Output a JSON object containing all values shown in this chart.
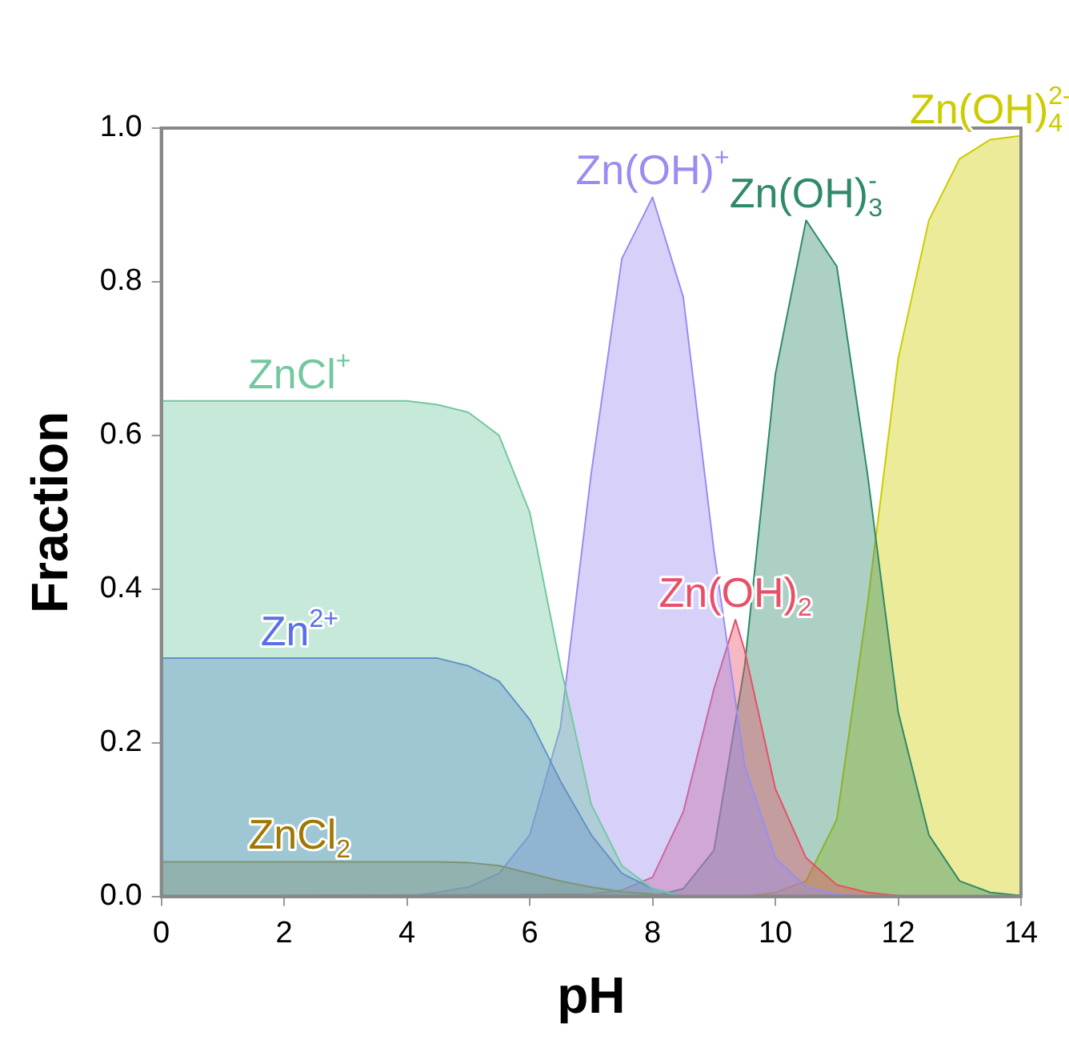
{
  "chart_data": {
    "type": "area",
    "xlabel": "pH",
    "ylabel": "Fraction",
    "xlim": [
      0,
      14
    ],
    "xticks": [
      0,
      2,
      4,
      6,
      8,
      10,
      12,
      14
    ],
    "ylim": [
      0,
      1
    ],
    "yticks": [
      {
        "value": 0,
        "label": "0.0"
      },
      {
        "value": 0.2,
        "label": "0.2"
      },
      {
        "value": 0.4,
        "label": "0.4"
      },
      {
        "value": 0.6,
        "label": "0.6"
      },
      {
        "value": 0.8,
        "label": "0.8"
      },
      {
        "value": 1,
        "label": "1.0"
      }
    ],
    "grid": false,
    "legend": false,
    "marker": "none",
    "x": [
      0,
      0.5,
      1,
      1.5,
      2,
      2.5,
      3,
      3.5,
      4,
      4.5,
      5,
      5.5,
      6,
      6.5,
      7,
      7.5,
      8,
      8.5,
      9,
      9.5,
      10,
      10.5,
      11,
      11.5,
      12,
      12.5,
      13,
      13.5,
      14
    ],
    "series": [
      {
        "name": "ZnCl$^{+}$",
        "color": "#74c8a0",
        "values": [
          0.645,
          0.645,
          0.645,
          0.645,
          0.645,
          0.645,
          0.645,
          0.645,
          0.645,
          0.64,
          0.63,
          0.6,
          0.5,
          0.3,
          0.12,
          0.04,
          0.01,
          0,
          0,
          0,
          0,
          0,
          0,
          0,
          0,
          0,
          0,
          0,
          0
        ]
      },
      {
        "name": "Zn$^{2+}$",
        "color": "#5a6ee6",
        "values": [
          0.31,
          0.31,
          0.31,
          0.31,
          0.31,
          0.31,
          0.31,
          0.31,
          0.31,
          0.31,
          0.3,
          0.28,
          0.23,
          0.15,
          0.08,
          0.03,
          0.01,
          0,
          0,
          0,
          0,
          0,
          0,
          0,
          0,
          0,
          0,
          0,
          0
        ]
      },
      {
        "name": "ZnCl$_{2}$",
        "color": "#a07800",
        "values": [
          0.045,
          0.045,
          0.045,
          0.045,
          0.045,
          0.045,
          0.045,
          0.045,
          0.045,
          0.045,
          0.044,
          0.04,
          0.03,
          0.02,
          0.012,
          0.006,
          0.003,
          0,
          0,
          0,
          0,
          0,
          0,
          0,
          0,
          0,
          0,
          0,
          0
        ]
      },
      {
        "name": "Zn(OH)$^{+}$",
        "color": "#9a8cf2",
        "values": [
          0,
          0,
          0,
          0,
          0,
          0,
          0,
          0,
          0,
          0.005,
          0.012,
          0.03,
          0.08,
          0.22,
          0.55,
          0.83,
          0.91,
          0.78,
          0.45,
          0.17,
          0.05,
          0.012,
          0.003,
          0,
          0,
          0,
          0,
          0,
          0
        ]
      },
      {
        "name": "Zn(OH)$_{2}$",
        "color": "#e8506a",
        "x": [
          0,
          7,
          7.5,
          8,
          8.5,
          9,
          9.35,
          9.5,
          10,
          10.5,
          11,
          11.5,
          12,
          14
        ],
        "values": [
          0,
          0.003,
          0.008,
          0.025,
          0.11,
          0.27,
          0.36,
          0.32,
          0.14,
          0.05,
          0.015,
          0.005,
          0.001,
          0
        ]
      },
      {
        "name": "Zn(OH)$_{3}$$^{-}$",
        "color": "#2f8a68",
        "values": [
          0,
          0,
          0,
          0,
          0,
          0,
          0,
          0,
          0,
          0,
          0,
          0,
          0,
          0,
          0,
          0,
          0,
          0.01,
          0.06,
          0.3,
          0.68,
          0.88,
          0.82,
          0.55,
          0.24,
          0.08,
          0.02,
          0.005,
          0.001
        ]
      },
      {
        "name": "Zn(OH)$_{4}$$^{2-}$",
        "color": "#cccc00",
        "values": [
          0,
          0,
          0,
          0,
          0,
          0,
          0,
          0,
          0,
          0,
          0,
          0,
          0,
          0,
          0,
          0,
          0,
          0,
          0,
          0,
          0.005,
          0.02,
          0.1,
          0.38,
          0.7,
          0.88,
          0.96,
          0.985,
          0.99
        ]
      }
    ]
  }
}
